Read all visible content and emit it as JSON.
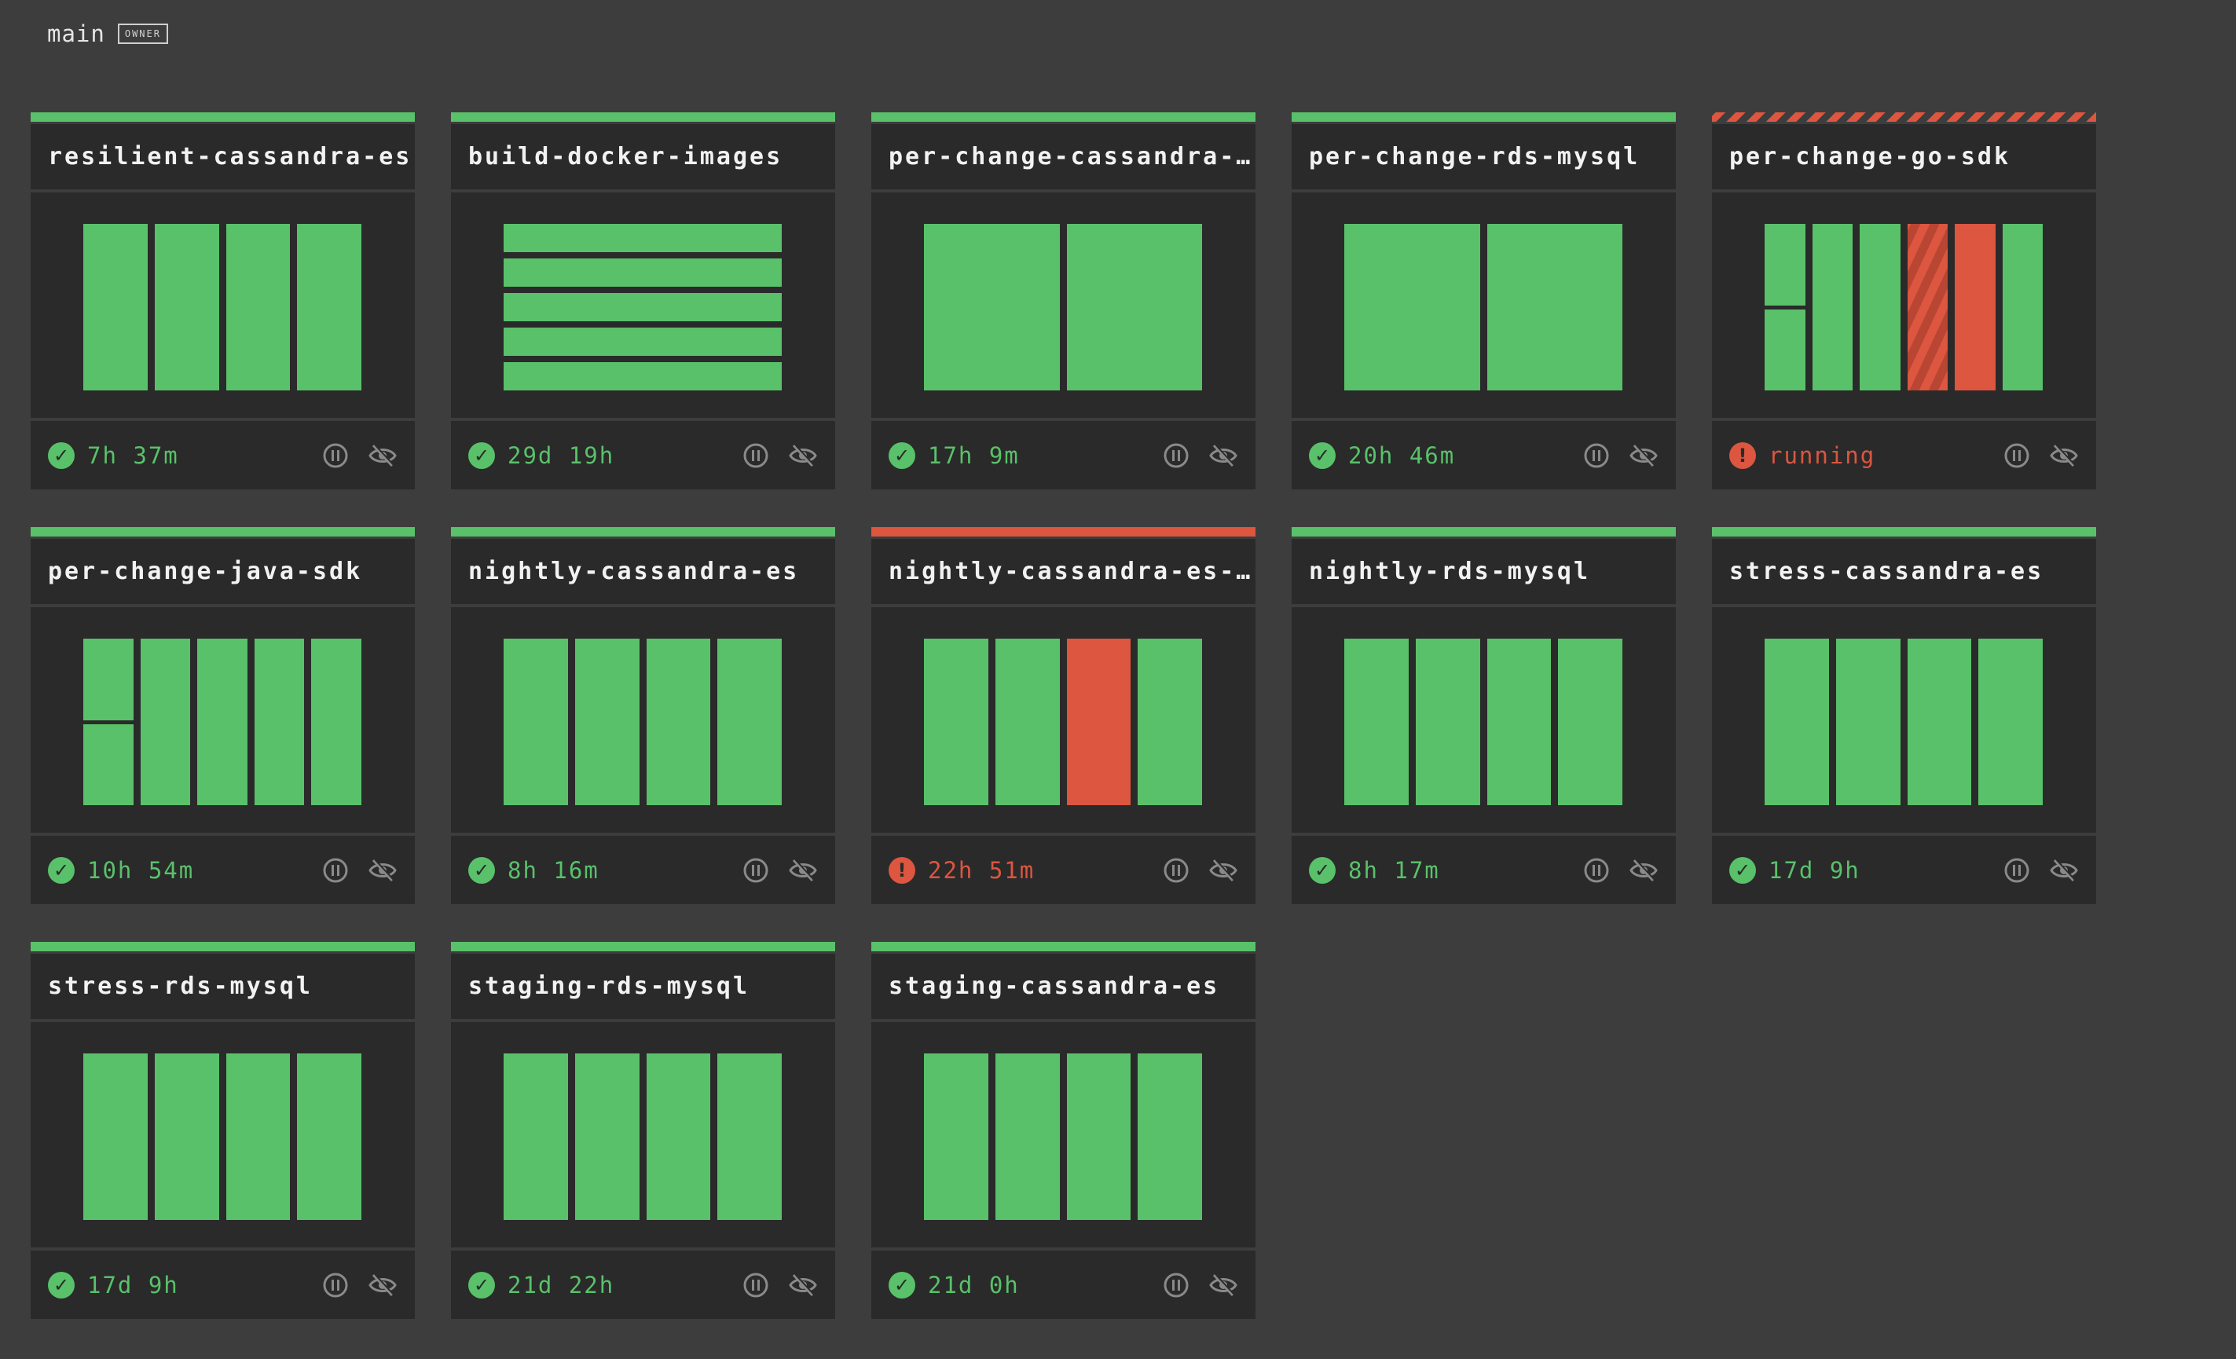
{
  "team": {
    "name": "main",
    "badge": "OWNER"
  },
  "colors": {
    "success": "#59c16a",
    "failed": "#dc5640",
    "card": "#2a2a2a",
    "background": "#3d3d3d",
    "icon": "#8a8a8a"
  },
  "icons": {
    "succeeded": "check-circle-icon",
    "failed": "exclamation-circle-icon",
    "pause": "pause-icon",
    "hide": "eye-off-icon"
  },
  "pipelines": [
    {
      "name": "resilient-cassandra-es",
      "status": "succeeded",
      "duration": "7h 37m",
      "layout": "cols",
      "jobs": [
        [
          "succeeded"
        ],
        [
          "succeeded"
        ],
        [
          "succeeded"
        ],
        [
          "succeeded"
        ]
      ]
    },
    {
      "name": "build-docker-images",
      "status": "succeeded",
      "duration": "29d 19h",
      "layout": "rows",
      "jobs": [
        [
          "succeeded"
        ],
        [
          "succeeded"
        ],
        [
          "succeeded"
        ],
        [
          "succeeded"
        ],
        [
          "succeeded"
        ]
      ]
    },
    {
      "name": "per-change-cassandra-…",
      "status": "succeeded",
      "duration": "17h 9m",
      "layout": "cols",
      "jobs": [
        [
          "succeeded"
        ],
        [
          "succeeded"
        ]
      ]
    },
    {
      "name": "per-change-rds-mysql",
      "status": "succeeded",
      "duration": "20h 46m",
      "layout": "cols",
      "jobs": [
        [
          "succeeded"
        ],
        [
          "succeeded"
        ]
      ]
    },
    {
      "name": "per-change-go-sdk",
      "status": "running",
      "duration": "running",
      "layout": "cols",
      "jobs": [
        [
          "succeeded",
          "succeeded"
        ],
        [
          "succeeded"
        ],
        [
          "succeeded"
        ],
        [
          "running"
        ],
        [
          "failed"
        ],
        [
          "succeeded"
        ]
      ]
    },
    {
      "name": "per-change-java-sdk",
      "status": "succeeded",
      "duration": "10h 54m",
      "layout": "cols",
      "jobs": [
        [
          "succeeded",
          "succeeded"
        ],
        [
          "succeeded"
        ],
        [
          "succeeded"
        ],
        [
          "succeeded"
        ],
        [
          "succeeded"
        ]
      ]
    },
    {
      "name": "nightly-cassandra-es",
      "status": "succeeded",
      "duration": "8h 16m",
      "layout": "cols",
      "jobs": [
        [
          "succeeded"
        ],
        [
          "succeeded"
        ],
        [
          "succeeded"
        ],
        [
          "succeeded"
        ]
      ]
    },
    {
      "name": "nightly-cassandra-es-…",
      "status": "failed",
      "duration": "22h 51m",
      "layout": "cols",
      "jobs": [
        [
          "succeeded"
        ],
        [
          "succeeded"
        ],
        [
          "failed"
        ],
        [
          "succeeded"
        ]
      ]
    },
    {
      "name": "nightly-rds-mysql",
      "status": "succeeded",
      "duration": "8h 17m",
      "layout": "cols",
      "jobs": [
        [
          "succeeded"
        ],
        [
          "succeeded"
        ],
        [
          "succeeded"
        ],
        [
          "succeeded"
        ]
      ]
    },
    {
      "name": "stress-cassandra-es",
      "status": "succeeded",
      "duration": "17d 9h",
      "layout": "cols",
      "jobs": [
        [
          "succeeded"
        ],
        [
          "succeeded"
        ],
        [
          "succeeded"
        ],
        [
          "succeeded"
        ]
      ]
    },
    {
      "name": "stress-rds-mysql",
      "status": "succeeded",
      "duration": "17d 9h",
      "layout": "cols",
      "jobs": [
        [
          "succeeded"
        ],
        [
          "succeeded"
        ],
        [
          "succeeded"
        ],
        [
          "succeeded"
        ]
      ]
    },
    {
      "name": "staging-rds-mysql",
      "status": "succeeded",
      "duration": "21d 22h",
      "layout": "cols",
      "jobs": [
        [
          "succeeded"
        ],
        [
          "succeeded"
        ],
        [
          "succeeded"
        ],
        [
          "succeeded"
        ]
      ]
    },
    {
      "name": "staging-cassandra-es",
      "status": "succeeded",
      "duration": "21d 0h",
      "layout": "cols",
      "jobs": [
        [
          "succeeded"
        ],
        [
          "succeeded"
        ],
        [
          "succeeded"
        ],
        [
          "succeeded"
        ]
      ]
    }
  ]
}
